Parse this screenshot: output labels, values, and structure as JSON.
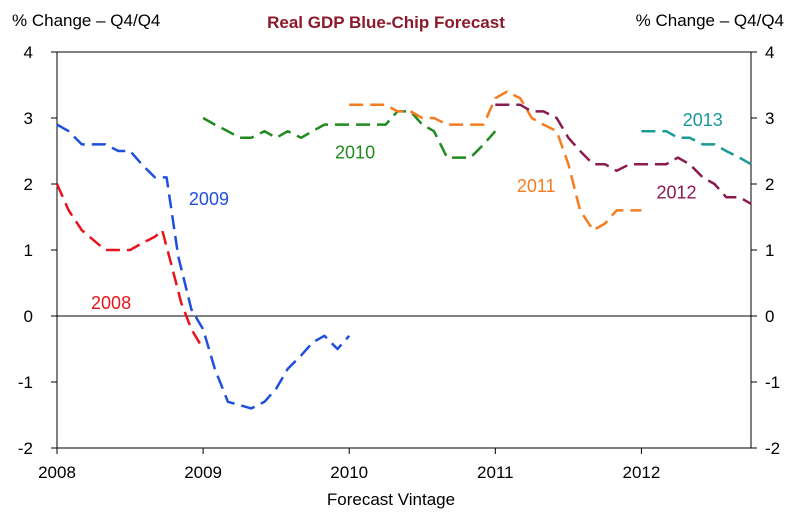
{
  "chart_data": {
    "type": "line",
    "title": "Real GDP Blue-Chip Forecast",
    "title_color": "#8b1a2b",
    "ylabel_left": "% Change – Q4/Q4",
    "ylabel_right": "% Change – Q4/Q4",
    "xlabel": "Forecast Vintage",
    "x_ticks": [
      "2008",
      "2009",
      "2010",
      "2011",
      "2012"
    ],
    "y_ticks": [
      "4",
      "3",
      "2",
      "1",
      "0",
      "-1",
      "-2"
    ],
    "xlim": [
      2008.0,
      2012.75
    ],
    "ylim": [
      -2,
      4
    ],
    "zero_line": true,
    "series": [
      {
        "name": "2008",
        "color": "#e8141b",
        "points": [
          [
            2008.0,
            2.0
          ],
          [
            2008.08,
            1.6
          ],
          [
            2008.17,
            1.3
          ],
          [
            2008.33,
            1.0
          ],
          [
            2008.42,
            1.0
          ],
          [
            2008.5,
            1.0
          ],
          [
            2008.58,
            1.1
          ],
          [
            2008.67,
            1.2
          ],
          [
            2008.72,
            1.3
          ],
          [
            2008.78,
            0.8
          ],
          [
            2008.85,
            0.2
          ],
          [
            2008.92,
            -0.2
          ],
          [
            2009.0,
            -0.5
          ]
        ]
      },
      {
        "name": "2009",
        "color": "#1f4fe0",
        "points": [
          [
            2008.0,
            2.9
          ],
          [
            2008.08,
            2.8
          ],
          [
            2008.17,
            2.6
          ],
          [
            2008.25,
            2.6
          ],
          [
            2008.33,
            2.6
          ],
          [
            2008.42,
            2.5
          ],
          [
            2008.5,
            2.5
          ],
          [
            2008.58,
            2.3
          ],
          [
            2008.67,
            2.1
          ],
          [
            2008.75,
            2.1
          ],
          [
            2008.83,
            0.9
          ],
          [
            2008.92,
            0.1
          ],
          [
            2009.0,
            -0.2
          ],
          [
            2009.08,
            -0.8
          ],
          [
            2009.17,
            -1.3
          ],
          [
            2009.25,
            -1.35
          ],
          [
            2009.33,
            -1.4
          ],
          [
            2009.42,
            -1.3
          ],
          [
            2009.5,
            -1.1
          ],
          [
            2009.58,
            -0.8
          ],
          [
            2009.67,
            -0.6
          ],
          [
            2009.75,
            -0.4
          ],
          [
            2009.83,
            -0.3
          ],
          [
            2009.92,
            -0.5
          ],
          [
            2010.0,
            -0.3
          ]
        ]
      },
      {
        "name": "2010",
        "color": "#1f8a1f",
        "points": [
          [
            2009.0,
            3.0
          ],
          [
            2009.08,
            2.9
          ],
          [
            2009.17,
            2.8
          ],
          [
            2009.25,
            2.7
          ],
          [
            2009.33,
            2.7
          ],
          [
            2009.42,
            2.8
          ],
          [
            2009.5,
            2.7
          ],
          [
            2009.58,
            2.8
          ],
          [
            2009.67,
            2.7
          ],
          [
            2009.75,
            2.8
          ],
          [
            2009.83,
            2.9
          ],
          [
            2009.92,
            2.9
          ],
          [
            2010.0,
            2.9
          ],
          [
            2010.08,
            2.9
          ],
          [
            2010.17,
            2.9
          ],
          [
            2010.25,
            2.9
          ],
          [
            2010.33,
            3.1
          ],
          [
            2010.42,
            3.1
          ],
          [
            2010.5,
            2.9
          ],
          [
            2010.58,
            2.8
          ],
          [
            2010.67,
            2.4
          ],
          [
            2010.75,
            2.4
          ],
          [
            2010.83,
            2.4
          ],
          [
            2010.92,
            2.6
          ],
          [
            2011.0,
            2.8
          ]
        ]
      },
      {
        "name": "2011",
        "color": "#f57c1f",
        "points": [
          [
            2010.0,
            3.2
          ],
          [
            2010.08,
            3.2
          ],
          [
            2010.17,
            3.2
          ],
          [
            2010.25,
            3.2
          ],
          [
            2010.33,
            3.1
          ],
          [
            2010.42,
            3.1
          ],
          [
            2010.5,
            3.0
          ],
          [
            2010.58,
            3.0
          ],
          [
            2010.67,
            2.9
          ],
          [
            2010.75,
            2.9
          ],
          [
            2010.83,
            2.9
          ],
          [
            2010.92,
            2.9
          ],
          [
            2011.0,
            3.3
          ],
          [
            2011.08,
            3.4
          ],
          [
            2011.17,
            3.3
          ],
          [
            2011.25,
            3.0
          ],
          [
            2011.33,
            2.9
          ],
          [
            2011.42,
            2.8
          ],
          [
            2011.5,
            2.3
          ],
          [
            2011.58,
            1.6
          ],
          [
            2011.67,
            1.3
          ],
          [
            2011.75,
            1.4
          ],
          [
            2011.83,
            1.6
          ],
          [
            2011.92,
            1.6
          ],
          [
            2012.0,
            1.6
          ]
        ]
      },
      {
        "name": "2012",
        "color": "#8b1a4f",
        "points": [
          [
            2011.0,
            3.2
          ],
          [
            2011.08,
            3.2
          ],
          [
            2011.17,
            3.2
          ],
          [
            2011.25,
            3.1
          ],
          [
            2011.33,
            3.1
          ],
          [
            2011.42,
            3.0
          ],
          [
            2011.5,
            2.7
          ],
          [
            2011.58,
            2.5
          ],
          [
            2011.67,
            2.3
          ],
          [
            2011.75,
            2.3
          ],
          [
            2011.83,
            2.2
          ],
          [
            2011.92,
            2.3
          ],
          [
            2012.0,
            2.3
          ],
          [
            2012.08,
            2.3
          ],
          [
            2012.17,
            2.3
          ],
          [
            2012.25,
            2.4
          ],
          [
            2012.33,
            2.3
          ],
          [
            2012.42,
            2.1
          ],
          [
            2012.5,
            2.0
          ],
          [
            2012.58,
            1.8
          ],
          [
            2012.67,
            1.8
          ],
          [
            2012.75,
            1.7
          ]
        ]
      },
      {
        "name": "2013",
        "color": "#1a9a96",
        "points": [
          [
            2012.0,
            2.8
          ],
          [
            2012.08,
            2.8
          ],
          [
            2012.17,
            2.8
          ],
          [
            2012.25,
            2.7
          ],
          [
            2012.33,
            2.7
          ],
          [
            2012.42,
            2.6
          ],
          [
            2012.5,
            2.6
          ],
          [
            2012.58,
            2.5
          ],
          [
            2012.67,
            2.4
          ],
          [
            2012.75,
            2.3
          ]
        ]
      }
    ],
    "labels": [
      {
        "text": "2008",
        "series": "2008",
        "x": 2008.37,
        "y": 0.2
      },
      {
        "text": "2009",
        "series": "2009",
        "x": 2009.04,
        "y": 1.77
      },
      {
        "text": "2010",
        "series": "2010",
        "x": 2010.04,
        "y": 2.48
      },
      {
        "text": "2011",
        "series": "2011",
        "x": 2011.28,
        "y": 1.97
      },
      {
        "text": "2012",
        "series": "2012",
        "x": 2012.24,
        "y": 1.87
      },
      {
        "text": "2013",
        "series": "2013",
        "x": 2012.42,
        "y": 2.97
      }
    ]
  }
}
